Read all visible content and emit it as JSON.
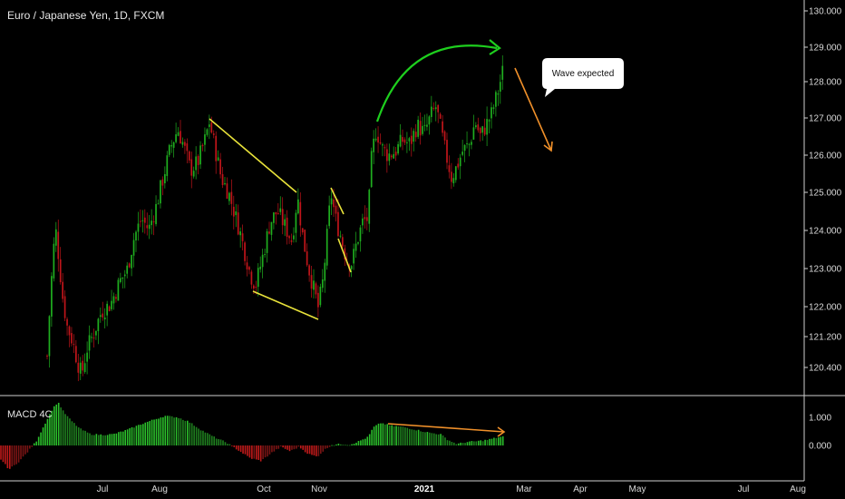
{
  "chart_data": {
    "type": "candlestick",
    "title": "Euro / Japanese Yen, 1D, FXCM",
    "symbol": "Euro / Japanese Yen",
    "interval": "1D",
    "source": "FXCM",
    "colors": {
      "background": "#000000",
      "up": "#1fae1f",
      "down": "#c0151a",
      "macd_up": "#2bbf2b",
      "macd_down": "#c01a1a",
      "trendline": "#e8e23a",
      "curve_arrow": "#1ecf1e",
      "down_arrow": "#f0902a",
      "macd_trendline": "#f0902a"
    },
    "price_axis": {
      "ticks": [
        "130.000",
        "129.000",
        "128.000",
        "127.000",
        "126.000",
        "125.000",
        "124.000",
        "123.000",
        "122.000",
        "121.200",
        "120.400"
      ],
      "range": [
        120.0,
        130.2
      ]
    },
    "time_axis": {
      "labels": [
        {
          "text": "Jul",
          "bold": false
        },
        {
          "text": "Aug",
          "bold": false
        },
        {
          "text": "Oct",
          "bold": false
        },
        {
          "text": "Nov",
          "bold": false
        },
        {
          "text": "2021",
          "bold": true
        },
        {
          "text": "Mar",
          "bold": false
        },
        {
          "text": "Apr",
          "bold": false
        },
        {
          "text": "May",
          "bold": false
        },
        {
          "text": "Jul",
          "bold": false
        },
        {
          "text": "Aug",
          "bold": false
        }
      ]
    },
    "price_series_approx": {
      "period_start": "May 2020",
      "period_end": "Feb 2021",
      "start_close": 120.6,
      "peaks": [
        124.3,
        126.8,
        127.0,
        125.0,
        124.4,
        127.4,
        128.4
      ],
      "troughs": [
        120.1,
        122.4,
        121.7,
        122.9,
        125.2
      ],
      "last_close": 128.4
    },
    "macd": {
      "label": "MACD 4C",
      "ticks": [
        "1.000",
        "0.000"
      ],
      "range": [
        -1.05,
        1.6
      ]
    },
    "annotations": {
      "callout_text": "Wave expected"
    }
  }
}
